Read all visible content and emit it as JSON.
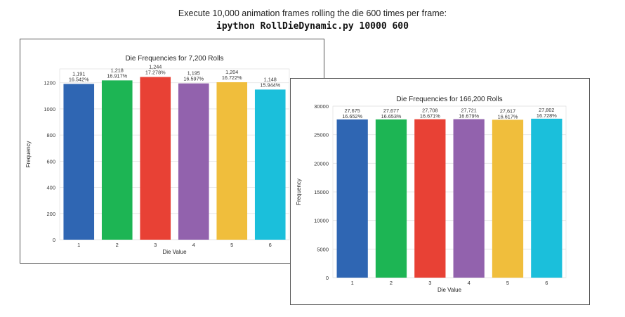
{
  "caption": {
    "line1": "Execute 10,000 animation frames rolling the die 600 times per frame:",
    "line2": "ipython RollDieDynamic.py 10000 600"
  },
  "colors": [
    "#2f66b3",
    "#1db554",
    "#e84135",
    "#9262ad",
    "#f0be3c",
    "#1bbfdb"
  ],
  "chart_data": [
    {
      "type": "bar",
      "title": "Die Frequencies for 7,200 Rolls",
      "xlabel": "Die Value",
      "ylabel": "Frequency",
      "categories": [
        "1",
        "2",
        "3",
        "4",
        "5",
        "6"
      ],
      "values": [
        1191,
        1218,
        1244,
        1195,
        1204,
        1148
      ],
      "value_labels": [
        "1,191",
        "1,218",
        "1,244",
        "1,195",
        "1,204",
        "1,148"
      ],
      "percent_labels": [
        "16.542%",
        "16.917%",
        "17.278%",
        "16.597%",
        "16.722%",
        "15.944%"
      ],
      "yticks": [
        0,
        200,
        400,
        600,
        800,
        1000,
        1200
      ],
      "ylim": [
        0,
        1306
      ],
      "grid": true
    },
    {
      "type": "bar",
      "title": "Die Frequencies for 166,200 Rolls",
      "xlabel": "Die Value",
      "ylabel": "Frequency",
      "categories": [
        "1",
        "2",
        "3",
        "4",
        "5",
        "6"
      ],
      "values": [
        27675,
        27677,
        27708,
        27721,
        27617,
        27802
      ],
      "value_labels": [
        "27,675",
        "27,677",
        "27,708",
        "27,721",
        "27,617",
        "27,802"
      ],
      "percent_labels": [
        "16.652%",
        "16.653%",
        "16.671%",
        "16.679%",
        "16.617%",
        "16.728%"
      ],
      "yticks": [
        0,
        5000,
        10000,
        15000,
        20000,
        25000,
        30000
      ],
      "ylim": [
        0,
        30000
      ],
      "grid": true
    }
  ]
}
